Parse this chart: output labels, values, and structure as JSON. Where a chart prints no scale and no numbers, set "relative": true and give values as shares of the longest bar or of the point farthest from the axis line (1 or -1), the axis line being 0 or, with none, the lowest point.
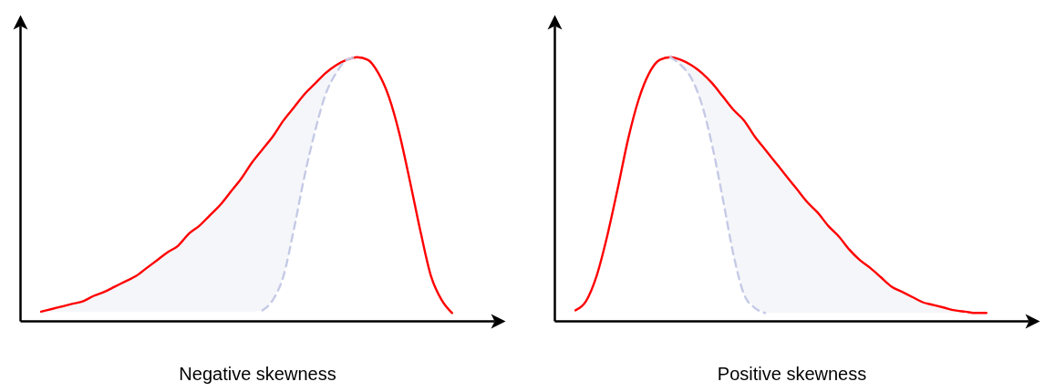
{
  "chart_data": [
    {
      "type": "line",
      "relative": true,
      "xlabel": "Negative skewness",
      "categories": [
        null,
        null,
        null,
        null,
        null,
        null,
        null,
        null,
        null,
        null,
        null,
        null,
        null,
        null,
        null,
        null,
        null,
        null,
        null,
        null,
        null,
        null,
        null,
        null,
        null,
        null,
        null,
        null,
        null,
        null,
        null,
        null,
        null,
        null,
        null,
        null,
        null,
        null,
        null,
        null,
        null,
        null,
        null,
        null,
        null
      ],
      "series": [
        {
          "color": "#ff0000",
          "values": [
            null,
            null,
            0.035,
            0.045,
            0.055,
            0.065,
            0.075,
            0.095,
            0.11,
            0.13,
            0.15,
            0.17,
            0.2,
            0.23,
            0.26,
            0.285,
            0.33,
            0.36,
            0.4,
            0.44,
            0.49,
            0.54,
            0.6,
            0.65,
            0.7,
            0.76,
            0.81,
            0.86,
            0.9,
            0.94,
            0.97,
            0.99,
            1.0,
            0.99,
            0.94,
            0.85,
            0.71,
            0.53,
            0.34,
            0.17,
            0.08,
            0.03,
            null,
            null,
            null
          ],
          "lower": [
            null,
            null,
            0.035,
            0.035,
            0.035,
            0.035,
            0.035,
            0.035,
            0.035,
            0.035,
            0.035,
            0.035,
            0.035,
            0.035,
            0.035,
            0.035,
            0.035,
            0.035,
            0.035,
            0.035,
            0.035,
            0.035,
            0.035,
            0.04,
            0.08,
            0.17,
            0.35,
            0.55,
            0.72,
            0.86,
            0.94,
            0.99,
            1.0,
            null,
            null,
            null,
            null,
            null,
            null,
            null,
            null,
            null,
            null,
            null,
            null
          ],
          "upper": [
            null,
            null,
            0.035,
            0.045,
            0.055,
            0.065,
            0.075,
            0.095,
            0.11,
            0.13,
            0.15,
            0.17,
            0.2,
            0.23,
            0.26,
            0.285,
            0.33,
            0.36,
            0.4,
            0.44,
            0.49,
            0.54,
            0.6,
            0.65,
            0.7,
            0.76,
            0.81,
            0.86,
            0.9,
            0.94,
            0.97,
            0.99,
            1.0,
            null,
            null,
            null,
            null,
            null,
            null,
            null,
            null,
            null,
            null,
            null,
            null
          ]
        },
        {
          "color": "#c5cae6",
          "line_style": "dashed",
          "values": [
            null,
            null,
            null,
            null,
            null,
            null,
            null,
            null,
            null,
            null,
            null,
            null,
            null,
            null,
            null,
            null,
            null,
            null,
            null,
            null,
            null,
            null,
            null,
            0.04,
            0.08,
            0.17,
            0.35,
            0.55,
            0.72,
            0.86,
            0.94,
            0.99,
            1.0,
            null,
            null,
            null,
            null,
            null,
            null,
            null,
            null,
            null,
            null,
            null,
            null
          ]
        }
      ]
    },
    {
      "type": "line",
      "relative": true,
      "xlabel": "Positive skewness",
      "categories": [
        null,
        null,
        null,
        null,
        null,
        null,
        null,
        null,
        null,
        null,
        null,
        null,
        null,
        null,
        null,
        null,
        null,
        null,
        null,
        null,
        null,
        null,
        null,
        null,
        null,
        null,
        null,
        null,
        null,
        null,
        null,
        null,
        null,
        null,
        null,
        null,
        null,
        null,
        null,
        null,
        null,
        null,
        null,
        null,
        null
      ],
      "series": [
        {
          "color": "#ff0000",
          "values": [
            null,
            null,
            0.04,
            0.075,
            0.17,
            0.32,
            0.5,
            0.69,
            0.84,
            0.94,
            0.99,
            1.0,
            0.99,
            0.97,
            0.94,
            0.9,
            0.85,
            0.8,
            0.76,
            0.7,
            0.65,
            0.6,
            0.55,
            0.5,
            0.45,
            0.41,
            0.36,
            0.32,
            0.27,
            0.23,
            0.2,
            0.165,
            0.13,
            0.11,
            0.09,
            0.07,
            0.06,
            0.05,
            0.04,
            0.035,
            0.03,
            0.03,
            null,
            null,
            null
          ],
          "lower": [
            null,
            null,
            null,
            null,
            null,
            null,
            null,
            null,
            null,
            null,
            null,
            1.0,
            0.97,
            0.92,
            0.82,
            0.66,
            0.46,
            0.25,
            0.1,
            0.05,
            0.03,
            0.03,
            0.03,
            0.03,
            0.03,
            0.03,
            0.03,
            0.03,
            0.03,
            0.03,
            0.03,
            0.03,
            0.03,
            0.03,
            0.03,
            0.03,
            0.03,
            0.03,
            0.03,
            0.03,
            0.03,
            0.03,
            null,
            null,
            null
          ],
          "upper": [
            null,
            null,
            null,
            null,
            null,
            null,
            null,
            null,
            null,
            null,
            null,
            1.0,
            0.99,
            0.97,
            0.94,
            0.9,
            0.85,
            0.8,
            0.76,
            0.7,
            0.65,
            0.6,
            0.55,
            0.5,
            0.45,
            0.41,
            0.36,
            0.32,
            0.27,
            0.23,
            0.2,
            0.165,
            0.13,
            0.11,
            0.09,
            0.07,
            0.06,
            0.05,
            0.04,
            0.035,
            0.03,
            0.03,
            null,
            null,
            null
          ]
        },
        {
          "color": "#c5cae6",
          "line_style": "dashed",
          "values": [
            null,
            null,
            null,
            null,
            null,
            null,
            null,
            null,
            null,
            null,
            null,
            1.0,
            0.97,
            0.92,
            0.82,
            0.66,
            0.46,
            0.25,
            0.1,
            0.05,
            0.03,
            null,
            null,
            null,
            null,
            null,
            null,
            null,
            null,
            null,
            null,
            null,
            null,
            null,
            null,
            null,
            null,
            null,
            null,
            null,
            null,
            null,
            null,
            null,
            null
          ]
        }
      ]
    }
  ]
}
